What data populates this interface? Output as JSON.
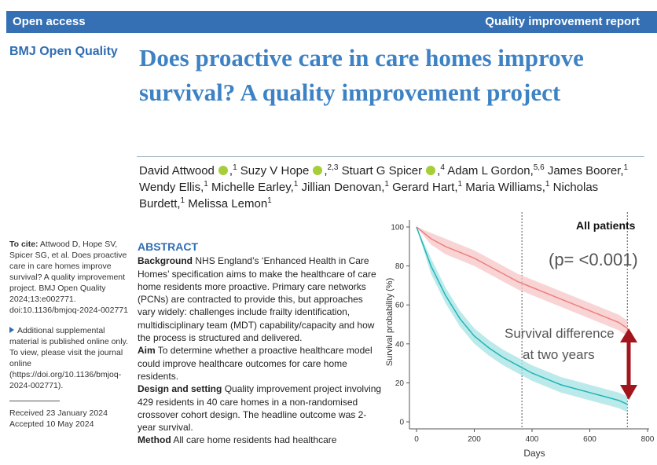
{
  "header": {
    "left": "Open access",
    "right": "Quality improvement report"
  },
  "journal": "BMJ Open Quality",
  "title": "Does proactive care in care homes improve survival? A quality improvement project",
  "separator": ",",
  "authors": [
    {
      "name": "David Attwood",
      "orcid": true,
      "affiliation": "1"
    },
    {
      "name": "Suzy V Hope",
      "orcid": true,
      "affiliation": "2,3"
    },
    {
      "name": "Stuart G Spicer",
      "orcid": true,
      "affiliation": "4"
    },
    {
      "name": "Adam L Gordon",
      "orcid": false,
      "affiliation": "5,6"
    },
    {
      "name": "James Boorer",
      "orcid": false,
      "affiliation": "1"
    },
    {
      "name": "Wendy Ellis",
      "orcid": false,
      "affiliation": "1"
    },
    {
      "name": "Michelle Earley",
      "orcid": false,
      "affiliation": "1"
    },
    {
      "name": "Jillian Denovan",
      "orcid": false,
      "affiliation": "1"
    },
    {
      "name": "Gerard Hart",
      "orcid": false,
      "affiliation": "1"
    },
    {
      "name": "Maria Williams",
      "orcid": false,
      "affiliation": "1"
    },
    {
      "name": "Nicholas Burdett",
      "orcid": false,
      "affiliation": "1"
    },
    {
      "name": "Melissa Lemon",
      "orcid": false,
      "affiliation": "1"
    }
  ],
  "sidebar": {
    "cite_label": "To cite:",
    "cite_text": "Attwood D, Hope SV, Spicer SG, et al. Does proactive care in care homes improve survival? A quality improvement project. BMJ Open Quality 2024;13:e002771. doi:10.1136/bmjoq-2024-002771",
    "supplement": "Additional supplemental material is published online only. To view, please visit the journal online (https://doi.org/10.1136/bmjoq-2024-002771).",
    "received": "Received 23 January 2024",
    "accepted": "Accepted 10 May 2024"
  },
  "abstract": {
    "heading": "ABSTRACT",
    "sections": [
      {
        "label": "Background",
        "text": "NHS England’s ‘Enhanced Health in Care Homes’ specification aims to make the healthcare of care home residents more proactive. Primary care networks (PCNs) are contracted to provide this, but approaches vary widely: challenges include frailty identification, multidisciplinary team (MDT) capability/capacity and how the process is structured and delivered."
      },
      {
        "label": "Aim",
        "text": "To determine whether a proactive healthcare model could improve healthcare outcomes for care home residents."
      },
      {
        "label": "Design and setting",
        "text": "Quality improvement project involving 429 residents in 40 care homes in a non-randomised crossover cohort design. The headline outcome was 2-year survival."
      },
      {
        "label": "Method",
        "text": "All care home residents had healthcare"
      }
    ]
  },
  "chart_data": {
    "type": "line",
    "title": "All patients",
    "annotation": "(p= <0.001)",
    "difference_label": [
      "Survival difference",
      "at two years"
    ],
    "xlabel": "Days",
    "ylabel": "Survival probability (%)",
    "xlim": [
      0,
      800
    ],
    "ylim": [
      0,
      100
    ],
    "xticks": [
      0,
      200,
      400,
      600,
      800
    ],
    "yticks": [
      0,
      20,
      40,
      60,
      80,
      100
    ],
    "vlines": [
      365,
      730
    ],
    "arrow_color": "#a3151c",
    "x": [
      0,
      50,
      100,
      150,
      200,
      250,
      300,
      350,
      400,
      450,
      500,
      550,
      600,
      650,
      700,
      730
    ],
    "series": [
      {
        "color": "#ee7f7f",
        "band_color": "#f7c6c6",
        "values": [
          100,
          94,
          90,
          87,
          84,
          80,
          76,
          72,
          69,
          66,
          63,
          60,
          57,
          54,
          51,
          48
        ],
        "lower": [
          100,
          91,
          86,
          83,
          80,
          76,
          72,
          68,
          65,
          62,
          59,
          56,
          53,
          50,
          47,
          44
        ],
        "upper": [
          100,
          97,
          94,
          91,
          88,
          84,
          80,
          76,
          73,
          70,
          67,
          64,
          61,
          58,
          55,
          52
        ]
      },
      {
        "color": "#1eb6b9",
        "band_color": "#a6e3e3",
        "values": [
          100,
          80,
          65,
          53,
          44,
          38,
          33,
          29,
          25,
          22,
          19,
          17,
          15,
          13,
          11,
          9
        ],
        "lower": [
          100,
          76,
          61,
          49,
          40,
          34,
          29,
          25,
          21,
          18,
          15,
          13,
          11,
          9,
          7,
          5
        ],
        "upper": [
          100,
          84,
          69,
          57,
          48,
          42,
          37,
          33,
          29,
          26,
          23,
          21,
          19,
          17,
          15,
          13
        ]
      }
    ]
  }
}
